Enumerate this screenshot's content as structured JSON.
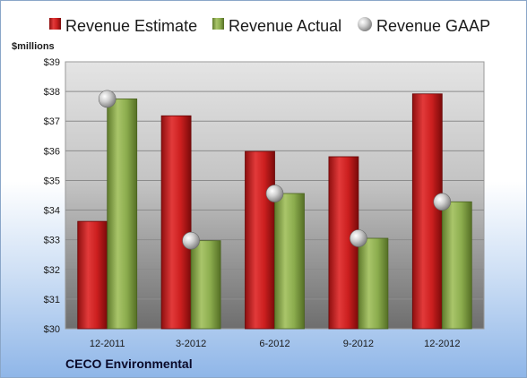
{
  "company": "CECO Environmental",
  "chart_data": {
    "type": "bar",
    "categories": [
      "12-2011",
      "3-2012",
      "6-2012",
      "9-2012",
      "12-2012"
    ],
    "series": [
      {
        "name": "Revenue Estimate",
        "values": [
          33.62,
          37.18,
          35.98,
          35.8,
          37.92
        ],
        "color": "#cc1f1f"
      },
      {
        "name": "Revenue Actual",
        "values": [
          37.75,
          32.97,
          34.56,
          33.05,
          34.28
        ],
        "color": "#8cad4e"
      }
    ],
    "markers": {
      "name": "Revenue GAAP",
      "values": [
        37.75,
        32.97,
        34.56,
        33.05,
        34.28
      ],
      "color": "#b5b5b5"
    },
    "ylabel": "$millions",
    "ylim": [
      30,
      39
    ],
    "yticks": [
      "$30",
      "$31",
      "$32",
      "$33",
      "$34",
      "$35",
      "$36",
      "$37",
      "$38",
      "$39"
    ],
    "grid": true,
    "legend": "top"
  }
}
